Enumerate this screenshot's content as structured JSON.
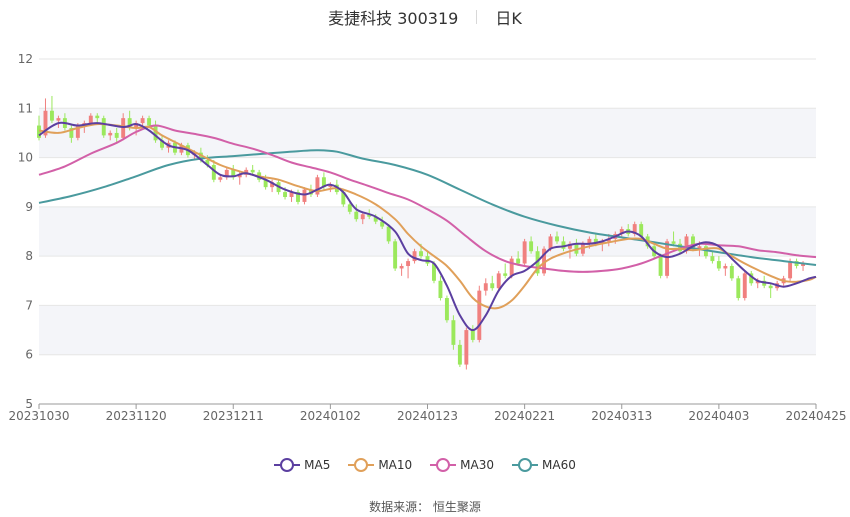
{
  "header": {
    "title": "麦捷科技 300319",
    "subtitle": "日K"
  },
  "footer": {
    "source_label": "数据来源：",
    "source_name": "恒生聚源"
  },
  "colors": {
    "up": "#f0807f",
    "down": "#9be85c",
    "MA5": "#5b3fa0",
    "MA10": "#e0a05a",
    "MA30": "#d260a8",
    "MA60": "#4a9a9e"
  },
  "chart_data": {
    "type": "candlestick",
    "title": "麦捷科技 300319",
    "subtitle": "日K",
    "ylim": [
      5,
      12
    ],
    "yticks": [
      5,
      6,
      7,
      8,
      9,
      10,
      11,
      12
    ],
    "grid": true,
    "legend_position": "bottom",
    "x_tick_labels": [
      "20231030",
      "20231120",
      "20231211",
      "20240102",
      "20240123",
      "20240221",
      "20240313",
      "20240403",
      "20240425"
    ],
    "x_tick_index": [
      0,
      15,
      30,
      45,
      60,
      75,
      90,
      105,
      120
    ],
    "candles_ohlc": [
      [
        10.65,
        10.85,
        10.35,
        10.4
      ],
      [
        10.45,
        11.2,
        10.4,
        10.95
      ],
      [
        10.95,
        11.25,
        10.7,
        10.75
      ],
      [
        10.75,
        10.85,
        10.6,
        10.8
      ],
      [
        10.8,
        10.9,
        10.55,
        10.6
      ],
      [
        10.6,
        10.65,
        10.3,
        10.4
      ],
      [
        10.4,
        10.7,
        10.35,
        10.65
      ],
      [
        10.65,
        10.75,
        10.5,
        10.7
      ],
      [
        10.7,
        10.9,
        10.65,
        10.85
      ],
      [
        10.85,
        10.9,
        10.7,
        10.8
      ],
      [
        10.8,
        10.85,
        10.4,
        10.45
      ],
      [
        10.45,
        10.55,
        10.35,
        10.5
      ],
      [
        10.5,
        10.6,
        10.3,
        10.4
      ],
      [
        10.4,
        10.9,
        10.35,
        10.8
      ],
      [
        10.8,
        10.95,
        10.55,
        10.6
      ],
      [
        10.6,
        10.75,
        10.45,
        10.7
      ],
      [
        10.7,
        10.85,
        10.65,
        10.8
      ],
      [
        10.8,
        10.85,
        10.6,
        10.65
      ],
      [
        10.65,
        10.75,
        10.3,
        10.35
      ],
      [
        10.35,
        10.45,
        10.15,
        10.2
      ],
      [
        10.2,
        10.35,
        10.1,
        10.3
      ],
      [
        10.3,
        10.35,
        10.05,
        10.1
      ],
      [
        10.1,
        10.3,
        10.05,
        10.25
      ],
      [
        10.25,
        10.3,
        10.0,
        10.05
      ],
      [
        10.05,
        10.15,
        9.95,
        10.1
      ],
      [
        10.1,
        10.2,
        9.9,
        9.95
      ],
      [
        9.95,
        10.05,
        9.8,
        9.85
      ],
      [
        9.85,
        9.95,
        9.5,
        9.55
      ],
      [
        9.55,
        9.65,
        9.5,
        9.6
      ],
      [
        9.6,
        9.8,
        9.55,
        9.75
      ],
      [
        9.75,
        9.85,
        9.55,
        9.6
      ],
      [
        9.6,
        9.7,
        9.45,
        9.65
      ],
      [
        9.65,
        9.8,
        9.6,
        9.75
      ],
      [
        9.75,
        9.85,
        9.65,
        9.7
      ],
      [
        9.7,
        9.75,
        9.5,
        9.55
      ],
      [
        9.55,
        9.65,
        9.35,
        9.4
      ],
      [
        9.4,
        9.55,
        9.3,
        9.5
      ],
      [
        9.5,
        9.55,
        9.25,
        9.3
      ],
      [
        9.3,
        9.4,
        9.15,
        9.2
      ],
      [
        9.2,
        9.35,
        9.1,
        9.3
      ],
      [
        9.3,
        9.35,
        9.05,
        9.1
      ],
      [
        9.1,
        9.4,
        9.05,
        9.35
      ],
      [
        9.35,
        9.45,
        9.2,
        9.25
      ],
      [
        9.25,
        9.65,
        9.2,
        9.6
      ],
      [
        9.6,
        9.7,
        9.35,
        9.4
      ],
      [
        9.4,
        9.5,
        9.3,
        9.45
      ],
      [
        9.45,
        9.55,
        9.25,
        9.3
      ],
      [
        9.3,
        9.35,
        9.0,
        9.05
      ],
      [
        9.05,
        9.1,
        8.85,
        8.9
      ],
      [
        8.9,
        9.05,
        8.7,
        8.75
      ],
      [
        8.75,
        8.9,
        8.65,
        8.85
      ],
      [
        8.85,
        8.95,
        8.75,
        8.8
      ],
      [
        8.8,
        8.85,
        8.65,
        8.7
      ],
      [
        8.7,
        8.8,
        8.55,
        8.6
      ],
      [
        8.6,
        8.65,
        8.25,
        8.3
      ],
      [
        8.3,
        8.35,
        7.7,
        7.75
      ],
      [
        7.75,
        7.85,
        7.6,
        7.8
      ],
      [
        7.8,
        7.95,
        7.55,
        7.9
      ],
      [
        7.9,
        8.15,
        7.85,
        8.1
      ],
      [
        8.1,
        8.25,
        7.95,
        8.0
      ],
      [
        8.0,
        8.1,
        7.8,
        7.85
      ],
      [
        7.85,
        7.9,
        7.45,
        7.5
      ],
      [
        7.5,
        7.6,
        7.1,
        7.15
      ],
      [
        7.15,
        7.2,
        6.65,
        6.7
      ],
      [
        6.7,
        6.8,
        6.1,
        6.2
      ],
      [
        6.2,
        6.3,
        5.75,
        5.8
      ],
      [
        5.8,
        6.55,
        5.7,
        6.5
      ],
      [
        6.5,
        6.6,
        6.25,
        6.3
      ],
      [
        6.3,
        7.4,
        6.25,
        7.3
      ],
      [
        7.3,
        7.55,
        7.2,
        7.45
      ],
      [
        7.45,
        7.6,
        7.3,
        7.35
      ],
      [
        7.35,
        7.7,
        7.3,
        7.65
      ],
      [
        7.65,
        7.85,
        7.55,
        7.6
      ],
      [
        7.6,
        8.0,
        7.55,
        7.95
      ],
      [
        7.95,
        8.1,
        7.8,
        7.85
      ],
      [
        7.85,
        8.35,
        7.8,
        8.3
      ],
      [
        8.3,
        8.4,
        8.05,
        8.1
      ],
      [
        8.1,
        8.2,
        7.6,
        7.65
      ],
      [
        7.65,
        8.2,
        7.6,
        8.15
      ],
      [
        8.15,
        8.45,
        8.1,
        8.4
      ],
      [
        8.4,
        8.5,
        8.25,
        8.3
      ],
      [
        8.3,
        8.4,
        8.1,
        8.15
      ],
      [
        8.15,
        8.3,
        7.95,
        8.25
      ],
      [
        8.25,
        8.35,
        8.0,
        8.05
      ],
      [
        8.05,
        8.3,
        8.0,
        8.25
      ],
      [
        8.25,
        8.4,
        8.15,
        8.35
      ],
      [
        8.35,
        8.45,
        8.2,
        8.25
      ],
      [
        8.25,
        8.35,
        8.1,
        8.3
      ],
      [
        8.3,
        8.45,
        8.2,
        8.35
      ],
      [
        8.35,
        8.5,
        8.25,
        8.45
      ],
      [
        8.45,
        8.6,
        8.4,
        8.55
      ],
      [
        8.55,
        8.65,
        8.4,
        8.45
      ],
      [
        8.45,
        8.7,
        8.4,
        8.65
      ],
      [
        8.65,
        8.7,
        8.35,
        8.4
      ],
      [
        8.4,
        8.45,
        8.15,
        8.2
      ],
      [
        8.2,
        8.25,
        7.95,
        8.0
      ],
      [
        8.0,
        8.05,
        7.55,
        7.6
      ],
      [
        7.6,
        8.35,
        7.55,
        8.3
      ],
      [
        8.3,
        8.5,
        8.2,
        8.25
      ],
      [
        8.25,
        8.35,
        8.05,
        8.1
      ],
      [
        8.1,
        8.45,
        8.05,
        8.4
      ],
      [
        8.4,
        8.45,
        8.1,
        8.15
      ],
      [
        8.15,
        8.3,
        8.0,
        8.2
      ],
      [
        8.2,
        8.25,
        7.95,
        8.0
      ],
      [
        8.0,
        8.1,
        7.85,
        7.9
      ],
      [
        7.9,
        8.0,
        7.7,
        7.75
      ],
      [
        7.75,
        7.85,
        7.6,
        7.8
      ],
      [
        7.8,
        7.85,
        7.5,
        7.55
      ],
      [
        7.55,
        7.6,
        7.1,
        7.15
      ],
      [
        7.15,
        7.7,
        7.1,
        7.65
      ],
      [
        7.65,
        7.7,
        7.4,
        7.45
      ],
      [
        7.45,
        7.55,
        7.35,
        7.5
      ],
      [
        7.5,
        7.6,
        7.35,
        7.4
      ],
      [
        7.4,
        7.45,
        7.15,
        7.35
      ],
      [
        7.35,
        7.5,
        7.3,
        7.45
      ],
      [
        7.45,
        7.6,
        7.4,
        7.55
      ],
      [
        7.55,
        7.95,
        7.5,
        7.9
      ],
      [
        7.9,
        7.95,
        7.75,
        7.8
      ],
      [
        7.8,
        7.9,
        7.7,
        7.85
      ]
    ],
    "series": [
      {
        "name": "MA5",
        "points": [
          [
            0,
            10.45
          ],
          [
            3,
            10.7
          ],
          [
            6,
            10.65
          ],
          [
            9,
            10.7
          ],
          [
            13,
            10.62
          ],
          [
            15,
            10.68
          ],
          [
            17,
            10.55
          ],
          [
            20,
            10.25
          ],
          [
            23,
            10.15
          ],
          [
            26,
            9.85
          ],
          [
            28,
            9.65
          ],
          [
            30,
            9.62
          ],
          [
            32,
            9.68
          ],
          [
            35,
            9.55
          ],
          [
            38,
            9.35
          ],
          [
            41,
            9.25
          ],
          [
            43,
            9.35
          ],
          [
            45,
            9.45
          ],
          [
            47,
            9.3
          ],
          [
            49,
            8.95
          ],
          [
            52,
            8.8
          ],
          [
            55,
            8.5
          ],
          [
            57,
            8.05
          ],
          [
            59,
            7.92
          ],
          [
            61,
            7.85
          ],
          [
            63,
            7.4
          ],
          [
            65,
            6.8
          ],
          [
            67,
            6.5
          ],
          [
            69,
            6.8
          ],
          [
            71,
            7.3
          ],
          [
            73,
            7.6
          ],
          [
            75,
            7.7
          ],
          [
            77,
            7.9
          ],
          [
            79,
            8.15
          ],
          [
            81,
            8.2
          ],
          [
            83,
            8.25
          ],
          [
            85,
            8.25
          ],
          [
            87,
            8.3
          ],
          [
            89,
            8.4
          ],
          [
            91,
            8.5
          ],
          [
            93,
            8.4
          ],
          [
            95,
            8.1
          ],
          [
            97,
            7.98
          ],
          [
            99,
            8.05
          ],
          [
            101,
            8.2
          ],
          [
            103,
            8.28
          ],
          [
            105,
            8.2
          ],
          [
            107,
            7.95
          ],
          [
            109,
            7.7
          ],
          [
            111,
            7.5
          ],
          [
            113,
            7.45
          ],
          [
            115,
            7.38
          ],
          [
            117,
            7.45
          ],
          [
            119,
            7.55
          ],
          [
            120,
            7.58
          ]
        ]
      },
      {
        "name": "MA10",
        "points": [
          [
            0,
            10.55
          ],
          [
            3,
            10.5
          ],
          [
            6,
            10.6
          ],
          [
            9,
            10.68
          ],
          [
            12,
            10.65
          ],
          [
            15,
            10.6
          ],
          [
            17,
            10.62
          ],
          [
            19,
            10.45
          ],
          [
            22,
            10.25
          ],
          [
            25,
            10.05
          ],
          [
            28,
            9.85
          ],
          [
            31,
            9.72
          ],
          [
            34,
            9.62
          ],
          [
            37,
            9.55
          ],
          [
            40,
            9.42
          ],
          [
            43,
            9.32
          ],
          [
            46,
            9.38
          ],
          [
            49,
            9.25
          ],
          [
            52,
            9.05
          ],
          [
            55,
            8.75
          ],
          [
            57,
            8.45
          ],
          [
            59,
            8.2
          ],
          [
            61,
            8.0
          ],
          [
            63,
            7.8
          ],
          [
            65,
            7.5
          ],
          [
            67,
            7.15
          ],
          [
            69,
            6.98
          ],
          [
            71,
            6.95
          ],
          [
            73,
            7.1
          ],
          [
            75,
            7.4
          ],
          [
            77,
            7.75
          ],
          [
            79,
            7.95
          ],
          [
            82,
            8.1
          ],
          [
            85,
            8.2
          ],
          [
            88,
            8.28
          ],
          [
            91,
            8.35
          ],
          [
            93,
            8.35
          ],
          [
            95,
            8.25
          ],
          [
            97,
            8.15
          ],
          [
            99,
            8.15
          ],
          [
            101,
            8.12
          ],
          [
            103,
            8.15
          ],
          [
            105,
            8.15
          ],
          [
            107,
            8.0
          ],
          [
            109,
            7.85
          ],
          [
            111,
            7.72
          ],
          [
            113,
            7.6
          ],
          [
            115,
            7.5
          ],
          [
            117,
            7.48
          ],
          [
            119,
            7.52
          ],
          [
            120,
            7.58
          ]
        ]
      },
      {
        "name": "MA30",
        "points": [
          [
            0,
            9.65
          ],
          [
            4,
            9.82
          ],
          [
            8,
            10.08
          ],
          [
            12,
            10.3
          ],
          [
            15,
            10.52
          ],
          [
            18,
            10.65
          ],
          [
            21,
            10.55
          ],
          [
            24,
            10.48
          ],
          [
            27,
            10.4
          ],
          [
            30,
            10.28
          ],
          [
            33,
            10.18
          ],
          [
            36,
            10.05
          ],
          [
            39,
            9.9
          ],
          [
            42,
            9.8
          ],
          [
            45,
            9.7
          ],
          [
            48,
            9.55
          ],
          [
            51,
            9.42
          ],
          [
            54,
            9.28
          ],
          [
            57,
            9.15
          ],
          [
            60,
            8.95
          ],
          [
            63,
            8.72
          ],
          [
            66,
            8.4
          ],
          [
            69,
            8.1
          ],
          [
            72,
            7.9
          ],
          [
            75,
            7.8
          ],
          [
            78,
            7.75
          ],
          [
            81,
            7.7
          ],
          [
            84,
            7.68
          ],
          [
            87,
            7.7
          ],
          [
            90,
            7.75
          ],
          [
            93,
            7.85
          ],
          [
            96,
            8.0
          ],
          [
            99,
            8.15
          ],
          [
            102,
            8.25
          ],
          [
            105,
            8.22
          ],
          [
            108,
            8.2
          ],
          [
            111,
            8.12
          ],
          [
            114,
            8.08
          ],
          [
            117,
            8.02
          ],
          [
            120,
            7.98
          ]
        ]
      },
      {
        "name": "MA60",
        "points": [
          [
            0,
            9.08
          ],
          [
            5,
            9.22
          ],
          [
            10,
            9.4
          ],
          [
            15,
            9.62
          ],
          [
            20,
            9.85
          ],
          [
            25,
            9.98
          ],
          [
            30,
            10.03
          ],
          [
            35,
            10.08
          ],
          [
            40,
            10.13
          ],
          [
            43,
            10.15
          ],
          [
            46,
            10.12
          ],
          [
            50,
            9.98
          ],
          [
            55,
            9.85
          ],
          [
            60,
            9.65
          ],
          [
            65,
            9.35
          ],
          [
            70,
            9.05
          ],
          [
            75,
            8.8
          ],
          [
            80,
            8.62
          ],
          [
            85,
            8.48
          ],
          [
            90,
            8.38
          ],
          [
            95,
            8.28
          ],
          [
            100,
            8.18
          ],
          [
            105,
            8.08
          ],
          [
            110,
            7.98
          ],
          [
            115,
            7.9
          ],
          [
            120,
            7.82
          ]
        ]
      }
    ]
  }
}
